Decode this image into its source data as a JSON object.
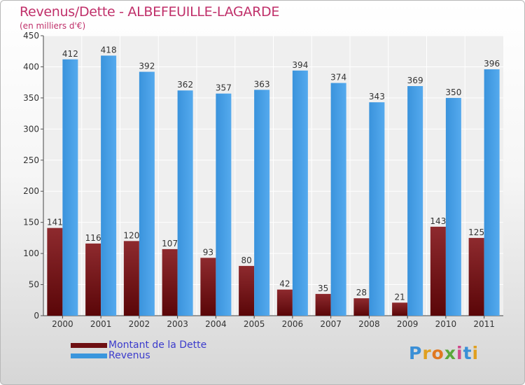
{
  "title": "Revenus/Dette - ALBEFEUILLE-LAGARDE",
  "subtitle": "(en milliers d'€)",
  "logo": "Proxiti",
  "colors": {
    "debt": "#7a1418",
    "revenue": "#3a96dd",
    "title": "#c0306a"
  },
  "chart_data": {
    "type": "bar",
    "categories": [
      "2000",
      "2001",
      "2002",
      "2003",
      "2004",
      "2005",
      "2006",
      "2007",
      "2008",
      "2009",
      "2010",
      "2011"
    ],
    "series": [
      {
        "name": "Montant de la Dette",
        "values": [
          141,
          116,
          120,
          107,
          93,
          80,
          42,
          35,
          28,
          21,
          143,
          125
        ]
      },
      {
        "name": "Revenus",
        "values": [
          412,
          418,
          392,
          362,
          357,
          363,
          394,
          374,
          343,
          369,
          350,
          396
        ]
      }
    ],
    "ylim": [
      0,
      450
    ],
    "yticks": [
      0,
      50,
      100,
      150,
      200,
      250,
      300,
      350,
      400,
      450
    ],
    "grid": true,
    "legend": "bottom-left"
  }
}
